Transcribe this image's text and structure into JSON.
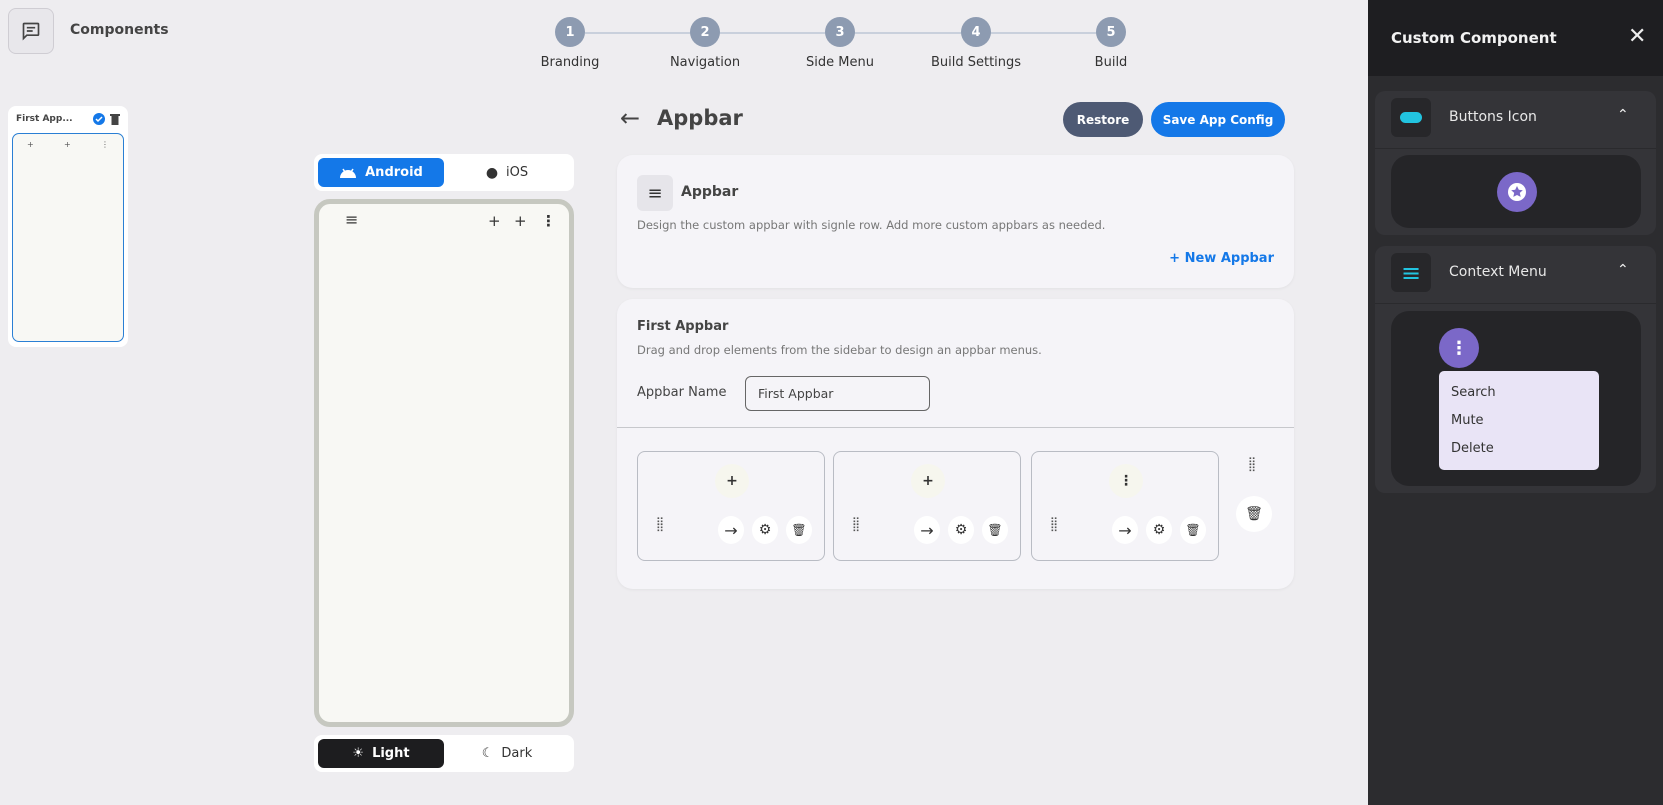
{
  "topbar": {
    "components_label": "Components"
  },
  "steps": [
    {
      "num": "1",
      "label": "Branding"
    },
    {
      "num": "2",
      "label": "Navigation"
    },
    {
      "num": "3",
      "label": "Side Menu"
    },
    {
      "num": "4",
      "label": "Build Settings"
    },
    {
      "num": "5",
      "label": "Build"
    }
  ],
  "thumbnail": {
    "title": "First App..."
  },
  "platform": {
    "android": "Android",
    "ios": "iOS",
    "selected": "Android"
  },
  "theme": {
    "light": "Light",
    "dark": "Dark",
    "selected": "Light"
  },
  "header": {
    "title": "Appbar",
    "restore": "Restore",
    "save": "Save App Config"
  },
  "appbar_card": {
    "title": "Appbar",
    "description": "Design the custom appbar with signle row. Add more custom appbars as needed.",
    "new_button": "New Appbar"
  },
  "first_appbar": {
    "title": "First Appbar",
    "description": "Drag and drop elements from the sidebar to design an appbar menus.",
    "name_label": "Appbar Name",
    "name_value": "First Appbar",
    "items": [
      {
        "icon": "plus-icon",
        "glyph": "+"
      },
      {
        "icon": "plus-icon",
        "glyph": "+"
      },
      {
        "icon": "more-vertical-icon",
        "glyph": "⋮"
      }
    ]
  },
  "panel": {
    "title": "Custom Component",
    "sections": [
      {
        "title": "Buttons Icon"
      },
      {
        "title": "Context Menu",
        "menu": [
          "Search",
          "Mute",
          "Delete"
        ]
      }
    ]
  },
  "colors": {
    "accent": "#1478e8",
    "purple": "#7b68c8",
    "cyan": "#22c4e0"
  }
}
